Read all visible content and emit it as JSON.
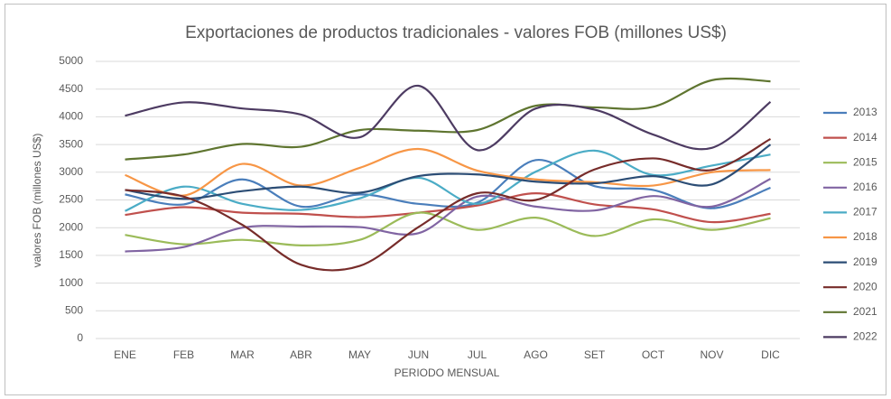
{
  "chart_data": {
    "type": "line",
    "title": "Exportaciones de productos tradicionales - valores FOB (millones US$)",
    "x_label": "PERIODO MENSUAL",
    "y_label": "valores FOB (millones US$)",
    "categories": [
      "ENE",
      "FEB",
      "MAR",
      "ABR",
      "MAY",
      "JUN",
      "JUL",
      "AGO",
      "SET",
      "OCT",
      "NOV",
      "DIC"
    ],
    "ylim": [
      0,
      5000
    ],
    "yticks": [
      0,
      500,
      1000,
      1500,
      2000,
      2500,
      3000,
      3500,
      4000,
      4500,
      5000
    ],
    "grid": true,
    "smooth": true,
    "legend": "right",
    "series": [
      {
        "name": "2013",
        "color": "#4a7ebb",
        "values": [
          2600,
          2420,
          2870,
          2380,
          2600,
          2430,
          2450,
          3220,
          2750,
          2680,
          2350,
          2720
        ]
      },
      {
        "name": "2014",
        "color": "#c0504d",
        "values": [
          2230,
          2370,
          2270,
          2250,
          2190,
          2270,
          2400,
          2620,
          2420,
          2330,
          2100,
          2250
        ]
      },
      {
        "name": "2015",
        "color": "#9bbb59",
        "values": [
          1870,
          1700,
          1780,
          1680,
          1780,
          2270,
          1960,
          2180,
          1850,
          2150,
          1960,
          2170
        ]
      },
      {
        "name": "2016",
        "color": "#8064a2",
        "values": [
          1570,
          1650,
          2000,
          2020,
          2010,
          1900,
          2560,
          2380,
          2310,
          2570,
          2380,
          2880
        ]
      },
      {
        "name": "2017",
        "color": "#4bacc6",
        "values": [
          2300,
          2740,
          2430,
          2320,
          2530,
          2900,
          2430,
          3010,
          3390,
          2950,
          3120,
          3320
        ]
      },
      {
        "name": "2018",
        "color": "#f79646",
        "values": [
          2950,
          2580,
          3150,
          2760,
          3080,
          3420,
          3030,
          2870,
          2820,
          2760,
          3000,
          3040
        ]
      },
      {
        "name": "2019",
        "color": "#2c4d75",
        "values": [
          2680,
          2520,
          2660,
          2740,
          2630,
          2930,
          2960,
          2830,
          2800,
          2930,
          2780,
          3500
        ]
      },
      {
        "name": "2020",
        "color": "#772c2a",
        "values": [
          2680,
          2560,
          2050,
          1330,
          1310,
          2010,
          2620,
          2500,
          3050,
          3250,
          3040,
          3600
        ]
      },
      {
        "name": "2021",
        "color": "#5f7530",
        "values": [
          3230,
          3320,
          3510,
          3460,
          3760,
          3750,
          3760,
          4200,
          4170,
          4180,
          4660,
          4640
        ]
      },
      {
        "name": "2022",
        "color": "#4d3b62",
        "values": [
          4020,
          4260,
          4150,
          4040,
          3630,
          4560,
          3400,
          4150,
          4130,
          3680,
          3440,
          4270
        ]
      }
    ]
  }
}
